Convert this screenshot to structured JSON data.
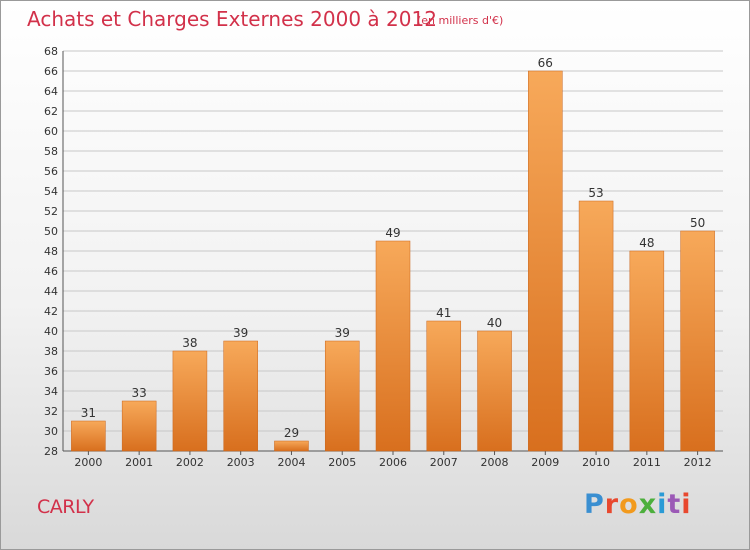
{
  "header": {
    "title": "Achats et Charges Externes 2000 à 2012",
    "unit": "(en milliers d'€)"
  },
  "footer": {
    "commune": "CARLY",
    "brand": "Proxiti",
    "brand_colors": [
      "#3a8fd1",
      "#e8482e",
      "#f29a1d",
      "#4caf3c",
      "#2a9bd6",
      "#9b59b6",
      "#e8482e"
    ]
  },
  "colors": {
    "bar_top": "#f7a95a",
    "bar_bottom": "#d86f1e",
    "grid": "#c8c8c8",
    "title": "#d2314a"
  },
  "chart_data": {
    "type": "bar",
    "title": "Achats et Charges Externes 2000 à 2012",
    "subtitle": "(en milliers d'€)",
    "categories": [
      "2000",
      "2001",
      "2002",
      "2003",
      "2004",
      "2005",
      "2006",
      "2007",
      "2008",
      "2009",
      "2010",
      "2011",
      "2012"
    ],
    "values": [
      31,
      33,
      38,
      39,
      29,
      39,
      49,
      41,
      40,
      66,
      53,
      48,
      50
    ],
    "ylim": [
      28,
      68
    ],
    "ytick_step": 2,
    "grid": "horizontal",
    "xlabel": "",
    "ylabel": ""
  }
}
